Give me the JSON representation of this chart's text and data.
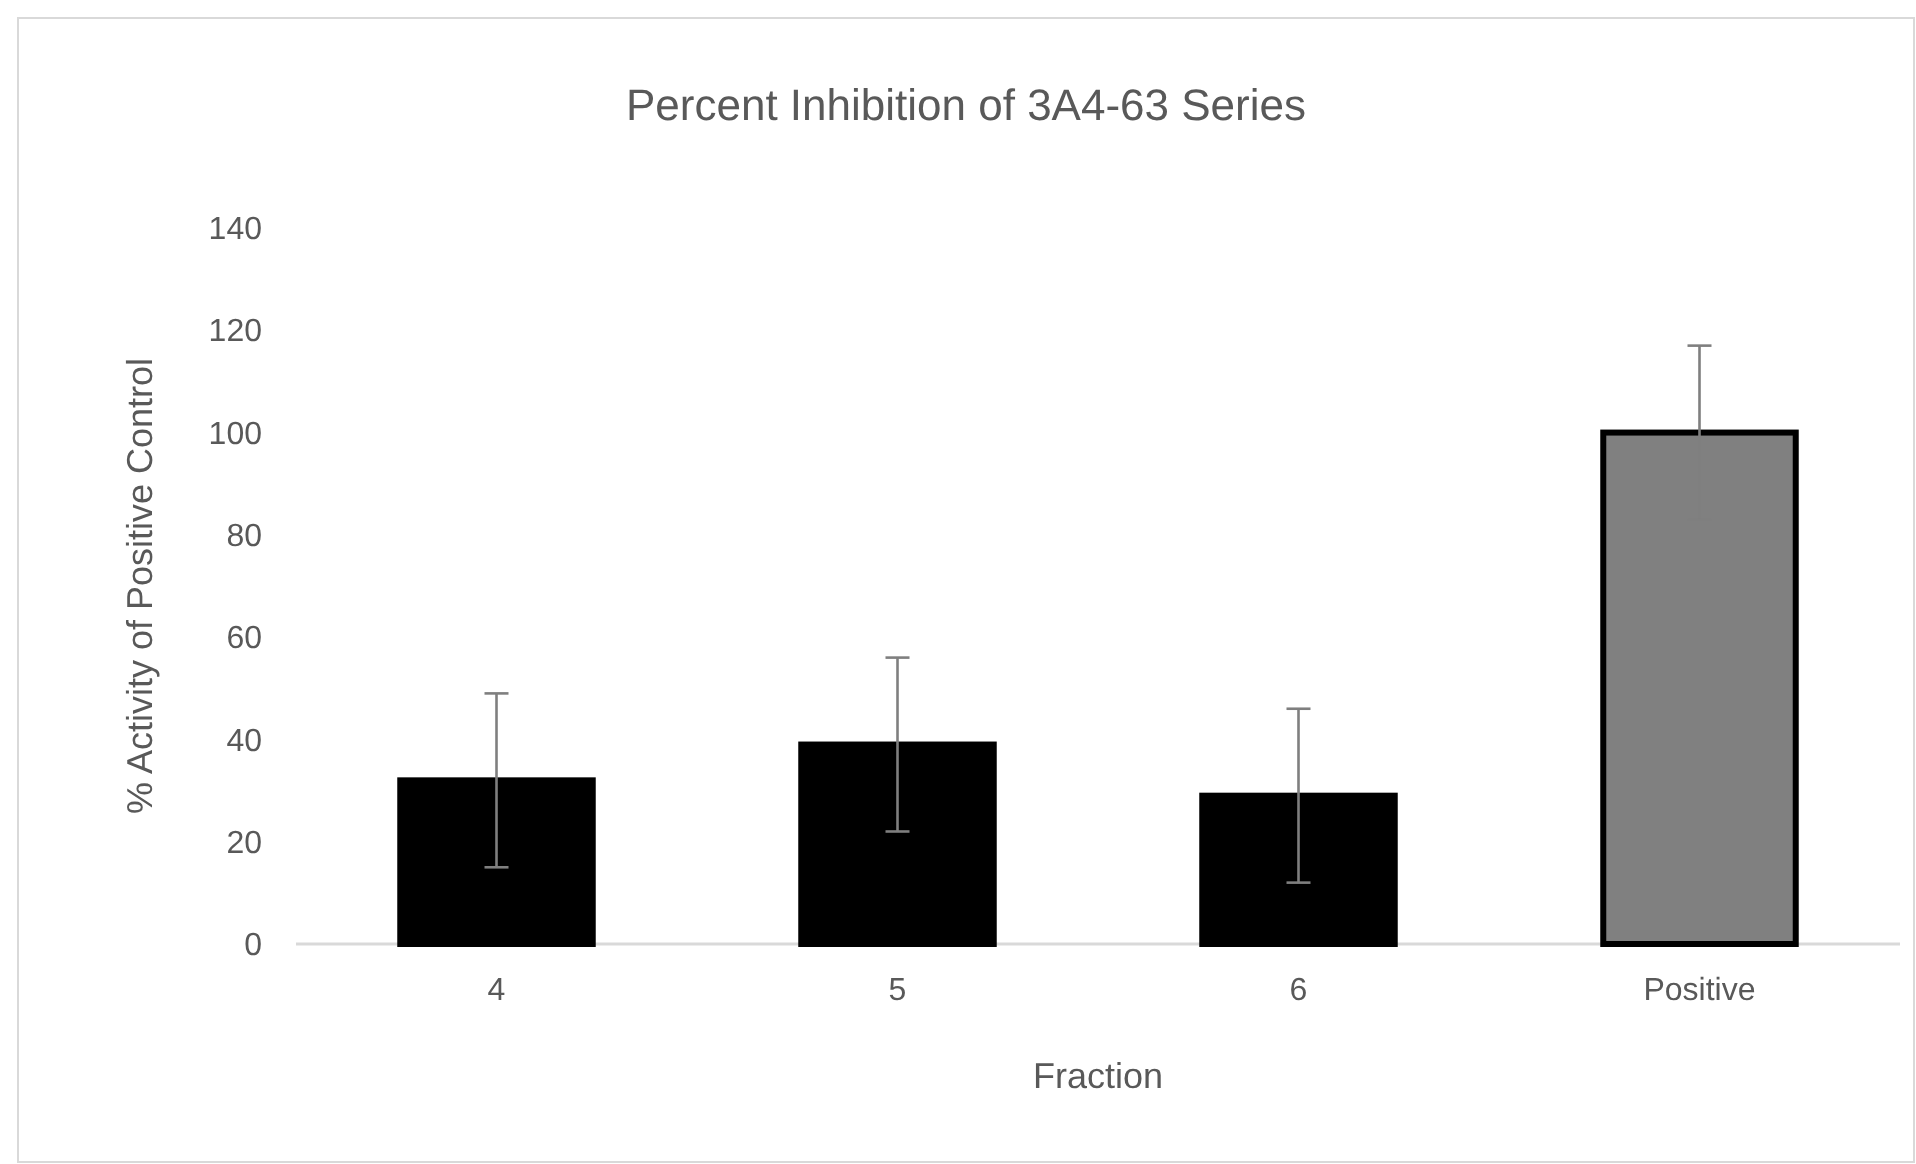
{
  "chart_data": {
    "type": "bar",
    "title": "Percent Inhibition of 3A4-63 Series",
    "xlabel": "Fraction",
    "ylabel": "% Activity of Positive Control",
    "categories": [
      "4",
      "5",
      "6",
      "Positive"
    ],
    "values": [
      32,
      39,
      29,
      100
    ],
    "colors": [
      "#000000",
      "#000000",
      "#000000",
      "#808080"
    ],
    "errors": [
      17,
      17,
      17,
      17
    ],
    "ylim": [
      0,
      140
    ],
    "yticks": [
      0,
      20,
      40,
      60,
      80,
      100,
      120,
      140
    ],
    "grid": false
  }
}
